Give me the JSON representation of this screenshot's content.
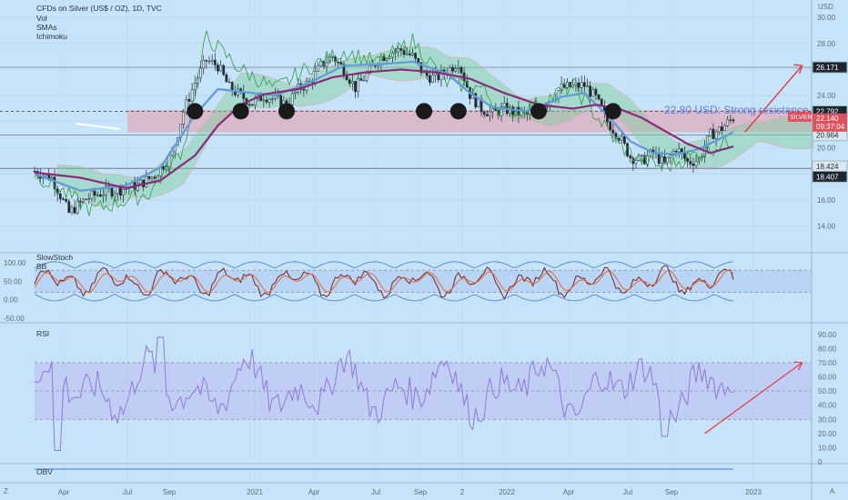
{
  "header": {
    "title": "CFDs on Silver (US$ / OZ), 1D, TVC",
    "indicators": [
      "Vol",
      "SMAs",
      "Ichimoku"
    ]
  },
  "axis": {
    "currency": "USD",
    "corner_left": "Z",
    "corner_right": "A"
  },
  "panes": {
    "stoch": {
      "title": "SlowStoch",
      "sub": "BB"
    },
    "rsi": {
      "title": "RSI"
    },
    "obv": {
      "title": "OBV"
    }
  },
  "colors": {
    "background": "#c7e3fa",
    "candle": "#1e2a33",
    "green_line": "#2e9c3f",
    "sma_slow": "#8b2a7a",
    "sma_fast": "#5f9bd8",
    "resistance_zone": "#e79aa9",
    "arrow": "#e03844",
    "rsi_line": "#8e7ad6",
    "rsi_band": "#b9b3f0",
    "stoch_band": "#5a8fe0"
  },
  "chart_data": [
    {
      "type": "candlestick",
      "title": "CFDs on Silver (US$ / OZ), 1D, TVC",
      "x_ticks": [
        "Apr",
        "Jul",
        "Sep",
        "2021",
        "Apr",
        "Jul",
        "Sep",
        "2",
        "2022",
        "Apr",
        "Jul",
        "Sep",
        "2023"
      ],
      "y_ticks": [
        14.0,
        16.0,
        18.0,
        20.0,
        22.0,
        24.0,
        26.0,
        28.0,
        30.0
      ],
      "ylim": [
        12.5,
        30.5
      ],
      "close_path": [
        [
          0,
          18.2
        ],
        [
          3,
          17.7
        ],
        [
          6,
          15.0
        ],
        [
          9,
          16.1
        ],
        [
          12,
          16.6
        ],
        [
          15,
          16.8
        ],
        [
          18,
          17.1
        ],
        [
          21,
          17.9
        ],
        [
          24,
          19.5
        ],
        [
          26,
          22.8
        ],
        [
          28,
          25.0
        ],
        [
          30,
          26.7
        ],
        [
          32,
          26.3
        ],
        [
          34,
          24.6
        ],
        [
          36,
          24.0
        ],
        [
          38,
          23.4
        ],
        [
          40,
          24.0
        ],
        [
          42,
          23.7
        ],
        [
          44,
          23.3
        ],
        [
          46,
          24.5
        ],
        [
          48,
          25.0
        ],
        [
          50,
          26.3
        ],
        [
          52,
          27.0
        ],
        [
          54,
          26.0
        ],
        [
          56,
          24.6
        ],
        [
          58,
          25.6
        ],
        [
          60,
          26.8
        ],
        [
          62,
          27.3
        ],
        [
          64,
          27.5
        ],
        [
          66,
          27.0
        ],
        [
          68,
          25.6
        ],
        [
          70,
          25.3
        ],
        [
          72,
          25.9
        ],
        [
          74,
          26.6
        ],
        [
          76,
          24.1
        ],
        [
          78,
          23.0
        ],
        [
          80,
          22.6
        ],
        [
          82,
          23.0
        ],
        [
          84,
          22.7
        ],
        [
          86,
          22.5
        ],
        [
          88,
          22.9
        ],
        [
          90,
          23.7
        ],
        [
          92,
          24.6
        ],
        [
          94,
          24.7
        ],
        [
          96,
          24.8
        ],
        [
          98,
          23.8
        ],
        [
          100,
          22.0
        ],
        [
          102,
          20.9
        ],
        [
          104,
          19.3
        ],
        [
          106,
          19.0
        ],
        [
          108,
          19.6
        ],
        [
          110,
          18.7
        ],
        [
          112,
          20.0
        ],
        [
          114,
          18.9
        ],
        [
          116,
          19.1
        ],
        [
          118,
          21.0
        ],
        [
          120,
          21.5
        ],
        [
          122,
          22.3
        ]
      ],
      "green_lag_line": [
        [
          0,
          18.0
        ],
        [
          10,
          15.2
        ],
        [
          20,
          16.5
        ],
        [
          26,
          20.0
        ],
        [
          30,
          28.5
        ],
        [
          36,
          26.0
        ],
        [
          42,
          24.5
        ],
        [
          48,
          26.2
        ],
        [
          54,
          27.4
        ],
        [
          60,
          26.5
        ],
        [
          66,
          28.2
        ],
        [
          72,
          25.0
        ],
        [
          78,
          24.6
        ],
        [
          82,
          22.6
        ],
        [
          88,
          23.4
        ],
        [
          94,
          24.8
        ],
        [
          98,
          22.5
        ],
        [
          102,
          20.2
        ],
        [
          106,
          19.0
        ],
        [
          110,
          18.5
        ],
        [
          116,
          19.6
        ],
        [
          122,
          20.6
        ]
      ],
      "sma_slow": [
        [
          0,
          18.1
        ],
        [
          8,
          17.7
        ],
        [
          16,
          16.9
        ],
        [
          22,
          17.5
        ],
        [
          28,
          19.4
        ],
        [
          32,
          21.7
        ],
        [
          36,
          23.3
        ],
        [
          40,
          24.1
        ],
        [
          46,
          24.5
        ],
        [
          52,
          25.4
        ],
        [
          58,
          25.8
        ],
        [
          64,
          26.0
        ],
        [
          70,
          25.8
        ],
        [
          76,
          25.3
        ],
        [
          82,
          24.2
        ],
        [
          88,
          23.3
        ],
        [
          94,
          23.0
        ],
        [
          98,
          23.3
        ],
        [
          102,
          23.0
        ],
        [
          106,
          22.3
        ],
        [
          110,
          21.3
        ],
        [
          114,
          20.3
        ],
        [
          118,
          19.6
        ],
        [
          122,
          20.1
        ]
      ],
      "sma_fast": [
        [
          0,
          18.0
        ],
        [
          8,
          16.7
        ],
        [
          16,
          17.1
        ],
        [
          22,
          18.5
        ],
        [
          28,
          22.5
        ],
        [
          32,
          24.5
        ],
        [
          36,
          24.3
        ],
        [
          42,
          24.0
        ],
        [
          48,
          25.0
        ],
        [
          54,
          26.3
        ],
        [
          60,
          26.4
        ],
        [
          66,
          26.6
        ],
        [
          72,
          25.7
        ],
        [
          76,
          24.2
        ],
        [
          80,
          23.1
        ],
        [
          86,
          22.8
        ],
        [
          92,
          23.9
        ],
        [
          96,
          24.2
        ],
        [
          100,
          22.5
        ],
        [
          104,
          20.5
        ],
        [
          108,
          19.6
        ],
        [
          112,
          19.5
        ],
        [
          116,
          19.9
        ],
        [
          122,
          21.2
        ]
      ],
      "levels": [
        {
          "value": 26.171,
          "label": "26.171"
        },
        {
          "value": 22.792,
          "label": "22.792"
        },
        {
          "value": 20.964,
          "label": "20.964"
        },
        {
          "value": 18.424,
          "label": "18.424"
        },
        {
          "value": 18.407,
          "label": "18.407"
        }
      ],
      "symbol_label": {
        "text": "SILVER",
        "price": "22.140",
        "countdown": "09:37:04"
      },
      "resistance_zone": [
        21.2,
        22.9
      ],
      "resistance_annotation": "22.80 USD: Strong resistance",
      "touch_points_x": [
        28,
        36,
        44,
        68,
        74,
        88,
        101
      ],
      "projection_arrow": {
        "from": [
          124,
          21.2
        ],
        "to": [
          134,
          26.3
        ]
      }
    },
    {
      "type": "line",
      "title": "SlowStoch",
      "y_ticks": [
        100.0,
        50.0,
        0.0,
        -50.0
      ],
      "ylim": [
        -55,
        115
      ],
      "levels": [
        80,
        20
      ],
      "range": [
        20,
        80
      ]
    },
    {
      "type": "line",
      "title": "RSI",
      "y_ticks": [
        0,
        10.0,
        20.0,
        30.0,
        40.0,
        50.0,
        60.0,
        70.0,
        80.0,
        90.0
      ],
      "ylim": [
        0,
        95
      ],
      "band": [
        30,
        70
      ],
      "midline": 50,
      "trendline": {
        "from": [
          117,
          20
        ],
        "to": [
          134,
          70
        ]
      }
    }
  ]
}
